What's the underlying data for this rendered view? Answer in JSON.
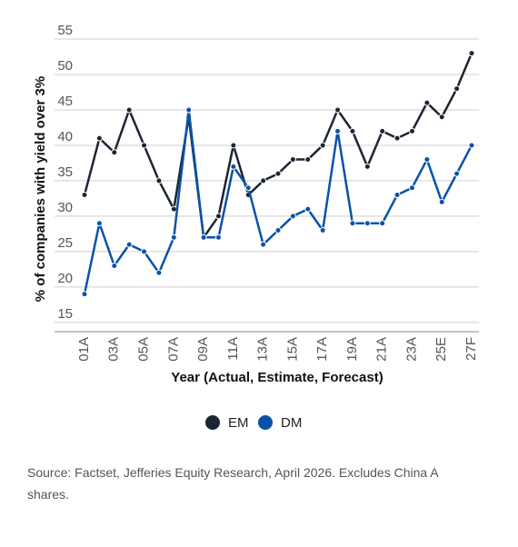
{
  "chart_data": {
    "type": "line",
    "x_label": "Year (Actual, Estimate, Forecast)",
    "y_label": "% of companies with yield over 3%",
    "categories": [
      "01A",
      null,
      "03A",
      null,
      "05A",
      null,
      "07A",
      null,
      "09A",
      null,
      "11A",
      null,
      "13A",
      null,
      "15A",
      null,
      "17A",
      null,
      "19A",
      null,
      "21A",
      null,
      "23A",
      null,
      "25E",
      null,
      "27F"
    ],
    "series": [
      {
        "name": "EM",
        "color": "#1c2533",
        "values": [
          33,
          41,
          39,
          45,
          40,
          35,
          31,
          44,
          27,
          30,
          40,
          33,
          35,
          36,
          38,
          38,
          40,
          45,
          42,
          37,
          42,
          41,
          42,
          46,
          44,
          48,
          53
        ]
      },
      {
        "name": "DM",
        "color": "#0a52a8",
        "values": [
          19,
          29,
          23,
          26,
          25,
          22,
          27,
          45,
          27,
          27,
          37,
          34,
          26,
          28,
          30,
          31,
          28,
          42,
          29,
          29,
          29,
          33,
          34,
          38,
          32,
          36,
          40
        ]
      }
    ],
    "ylim": [
      13.7,
      55
    ],
    "yticks": [
      15,
      20,
      25,
      30,
      35,
      40,
      45,
      50,
      55
    ],
    "grid": true,
    "source": "Source: Factset, Jefferies Equity Research, April 2026. Excludes China A shares."
  }
}
